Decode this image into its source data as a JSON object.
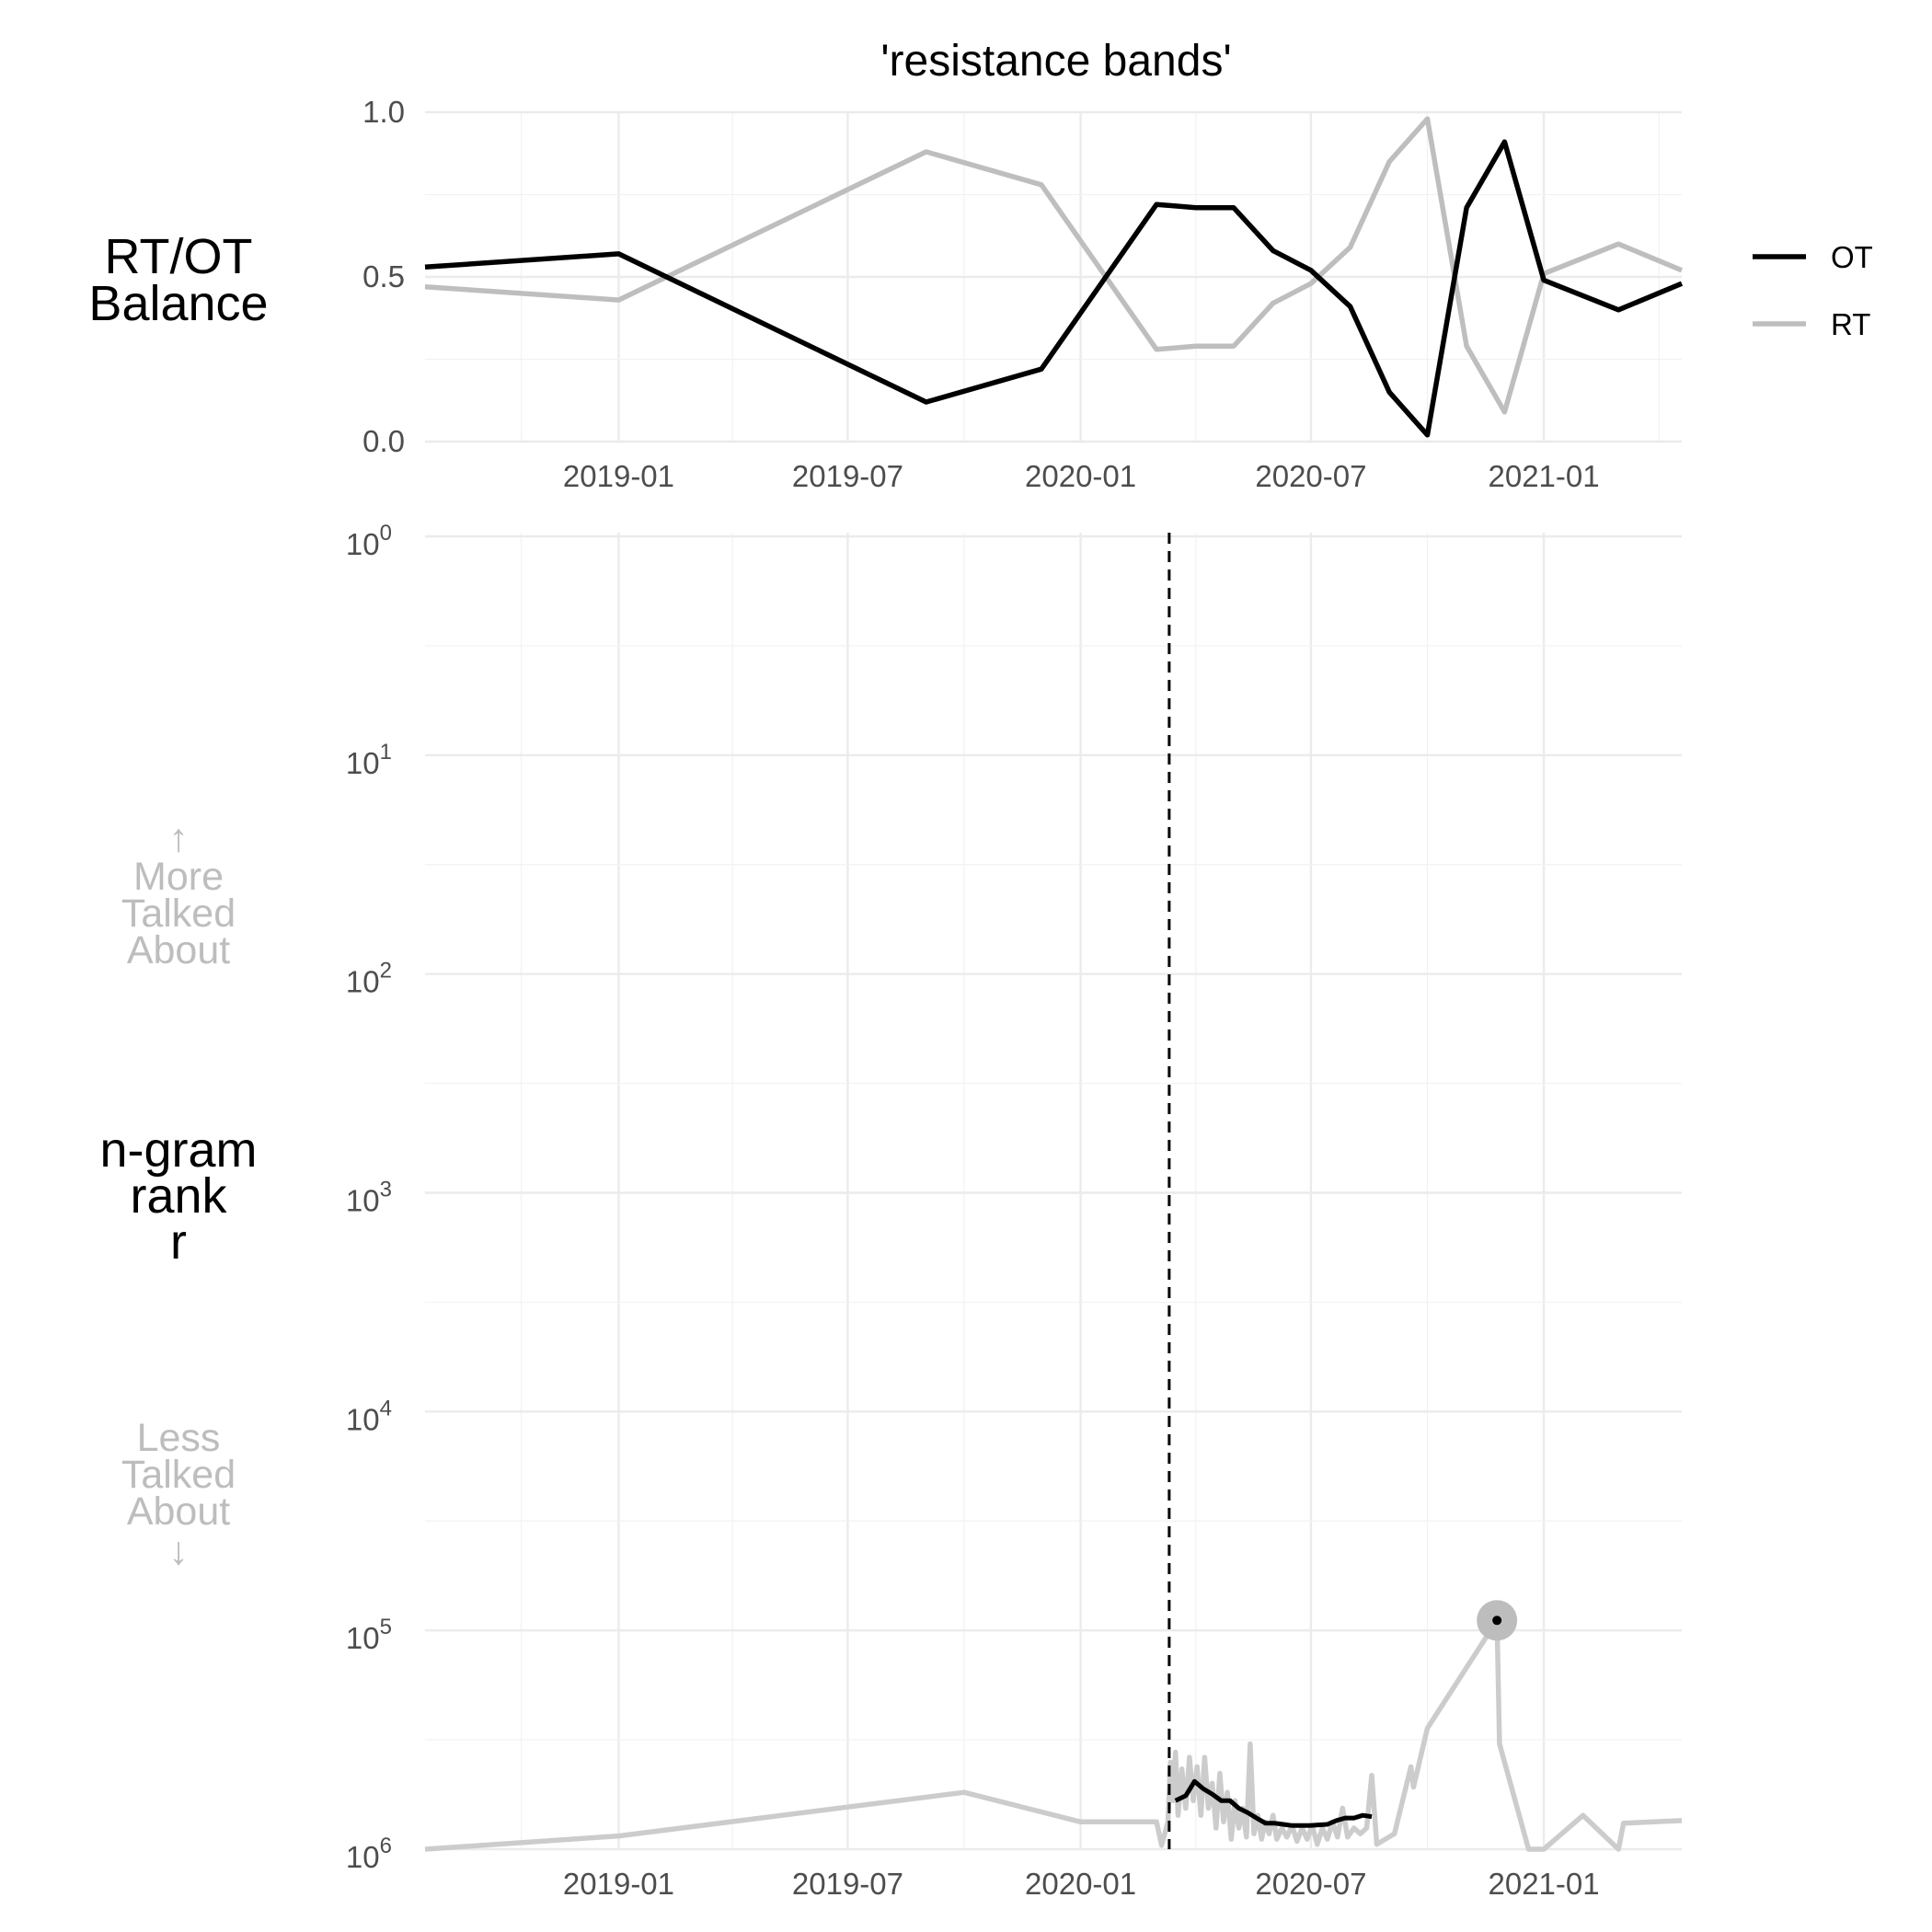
{
  "chart_data": [
    {
      "type": "line",
      "title": "'resistance bands'",
      "ylabel": "RT/OT Balance",
      "ylim": [
        0,
        1
      ],
      "yticks": [
        "0.0",
        "0.5",
        "1.0"
      ],
      "xticks": [
        "2019-01",
        "2019-07",
        "2020-01",
        "2020-07",
        "2021-01"
      ],
      "xlim": [
        "2018-08-01",
        "2021-04-20"
      ],
      "grid": true,
      "legend": {
        "position": "right",
        "entries": [
          "OT",
          "RT"
        ]
      },
      "series": [
        {
          "name": "OT",
          "color": "#000000",
          "points": [
            [
              "2018-08-01",
              0.53
            ],
            [
              "2019-01-01",
              0.57
            ],
            [
              "2019-09-01",
              0.12
            ],
            [
              "2019-12-01",
              0.22
            ],
            [
              "2020-03-01",
              0.72
            ],
            [
              "2020-04-01",
              0.71
            ],
            [
              "2020-05-01",
              0.71
            ],
            [
              "2020-06-01",
              0.58
            ],
            [
              "2020-07-01",
              0.52
            ],
            [
              "2020-08-01",
              0.41
            ],
            [
              "2020-09-01",
              0.15
            ],
            [
              "2020-10-01",
              0.02
            ],
            [
              "2020-11-01",
              0.71
            ],
            [
              "2020-12-01",
              0.91
            ],
            [
              "2021-01-01",
              0.49
            ],
            [
              "2021-03-01",
              0.4
            ],
            [
              "2021-04-20",
              0.48
            ]
          ]
        },
        {
          "name": "RT",
          "color": "#bebebe",
          "points": [
            [
              "2018-08-01",
              0.47
            ],
            [
              "2019-01-01",
              0.43
            ],
            [
              "2019-09-01",
              0.88
            ],
            [
              "2019-12-01",
              0.78
            ],
            [
              "2020-03-01",
              0.28
            ],
            [
              "2020-04-01",
              0.29
            ],
            [
              "2020-05-01",
              0.29
            ],
            [
              "2020-06-01",
              0.42
            ],
            [
              "2020-07-01",
              0.48
            ],
            [
              "2020-08-01",
              0.59
            ],
            [
              "2020-09-01",
              0.85
            ],
            [
              "2020-10-01",
              0.98
            ],
            [
              "2020-11-01",
              0.29
            ],
            [
              "2020-12-01",
              0.09
            ],
            [
              "2021-01-01",
              0.51
            ],
            [
              "2021-03-01",
              0.6
            ],
            [
              "2021-04-20",
              0.52
            ]
          ]
        }
      ]
    },
    {
      "type": "line",
      "ylabel": "n-gram rank r",
      "yscale": "log10",
      "yreversed": true,
      "ylim": [
        1,
        1000000
      ],
      "yticks": [
        {
          "base": "10",
          "exp": "0"
        },
        {
          "base": "10",
          "exp": "1"
        },
        {
          "base": "10",
          "exp": "2"
        },
        {
          "base": "10",
          "exp": "3"
        },
        {
          "base": "10",
          "exp": "4"
        },
        {
          "base": "10",
          "exp": "5"
        },
        {
          "base": "10",
          "exp": "6"
        }
      ],
      "xticks": [
        "2019-01",
        "2019-07",
        "2020-01",
        "2020-07",
        "2021-01"
      ],
      "xlim": [
        "2018-08-01",
        "2021-04-20"
      ],
      "grid": true,
      "annotations": {
        "up_arrow": "↑",
        "more": [
          "More",
          "Talked",
          "About"
        ],
        "less": [
          "Less",
          "Talked",
          "About"
        ],
        "down_arrow": "↓"
      },
      "vline_date": "2020-03-11",
      "highlight": {
        "date": "2020-11-25",
        "rank": 90000
      },
      "series": [
        {
          "name": "RT",
          "color": "#cccccc",
          "points": [
            [
              "2018-08-01",
              1000000
            ],
            [
              "2019-01-01",
              870000
            ],
            [
              "2019-10-01",
              550000
            ],
            [
              "2020-01-01",
              750000
            ],
            [
              "2020-03-01",
              750000
            ],
            [
              "2020-03-05",
              960000
            ],
            [
              "2020-03-10",
              750000
            ],
            [
              "2020-03-12",
              400000
            ],
            [
              "2020-03-14",
              600000
            ],
            [
              "2020-03-16",
              360000
            ],
            [
              "2020-03-18",
              700000
            ],
            [
              "2020-03-21",
              430000
            ],
            [
              "2020-03-24",
              650000
            ],
            [
              "2020-03-27",
              380000
            ],
            [
              "2020-03-30",
              600000
            ],
            [
              "2020-04-02",
              420000
            ],
            [
              "2020-04-05",
              700000
            ],
            [
              "2020-04-08",
              380000
            ],
            [
              "2020-04-11",
              650000
            ],
            [
              "2020-04-14",
              500000
            ],
            [
              "2020-04-17",
              800000
            ],
            [
              "2020-04-20",
              450000
            ],
            [
              "2020-04-23",
              750000
            ],
            [
              "2020-04-26",
              550000
            ],
            [
              "2020-04-29",
              900000
            ],
            [
              "2020-05-02",
              600000
            ],
            [
              "2020-05-05",
              800000
            ],
            [
              "2020-05-08",
              650000
            ],
            [
              "2020-05-11",
              880000
            ],
            [
              "2020-05-14",
              330000
            ],
            [
              "2020-05-17",
              850000
            ],
            [
              "2020-05-20",
              700000
            ],
            [
              "2020-05-23",
              900000
            ],
            [
              "2020-05-26",
              750000
            ],
            [
              "2020-05-29",
              850000
            ],
            [
              "2020-06-01",
              700000
            ],
            [
              "2020-06-04",
              900000
            ],
            [
              "2020-06-08",
              800000
            ],
            [
              "2020-06-12",
              880000
            ],
            [
              "2020-06-16",
              780000
            ],
            [
              "2020-06-20",
              920000
            ],
            [
              "2020-06-24",
              800000
            ],
            [
              "2020-06-28",
              900000
            ],
            [
              "2020-07-02",
              780000
            ],
            [
              "2020-07-06",
              950000
            ],
            [
              "2020-07-10",
              800000
            ],
            [
              "2020-07-14",
              900000
            ],
            [
              "2020-07-18",
              750000
            ],
            [
              "2020-07-22",
              880000
            ],
            [
              "2020-07-26",
              650000
            ],
            [
              "2020-07-30",
              880000
            ],
            [
              "2020-08-04",
              800000
            ],
            [
              "2020-08-09",
              850000
            ],
            [
              "2020-08-14",
              800000
            ],
            [
              "2020-08-18",
              460000
            ],
            [
              "2020-08-22",
              950000
            ],
            [
              "2020-09-05",
              850000
            ],
            [
              "2020-09-18",
              420000
            ],
            [
              "2020-09-20",
              520000
            ],
            [
              "2020-10-01",
              280000
            ],
            [
              "2020-11-25",
              90000
            ],
            [
              "2020-11-27",
              330000
            ],
            [
              "2020-12-20",
              1000000
            ],
            [
              "2021-01-01",
              1000000
            ],
            [
              "2021-02-01",
              700000
            ],
            [
              "2021-03-01",
              1000000
            ],
            [
              "2021-03-05",
              760000
            ],
            [
              "2021-04-20",
              740000
            ]
          ]
        },
        {
          "name": "OT",
          "color": "#000000",
          "points": [
            [
              "2020-03-16",
              600000
            ],
            [
              "2020-03-24",
              570000
            ],
            [
              "2020-03-31",
              490000
            ],
            [
              "2020-04-07",
              530000
            ],
            [
              "2020-04-14",
              560000
            ],
            [
              "2020-04-21",
              600000
            ],
            [
              "2020-04-28",
              600000
            ],
            [
              "2020-05-05",
              650000
            ],
            [
              "2020-05-12",
              680000
            ],
            [
              "2020-05-19",
              720000
            ],
            [
              "2020-05-26",
              760000
            ],
            [
              "2020-06-02",
              760000
            ],
            [
              "2020-06-16",
              780000
            ],
            [
              "2020-06-30",
              780000
            ],
            [
              "2020-07-14",
              770000
            ],
            [
              "2020-07-21",
              740000
            ],
            [
              "2020-07-28",
              720000
            ],
            [
              "2020-08-04",
              720000
            ],
            [
              "2020-08-11",
              700000
            ],
            [
              "2020-08-18",
              710000
            ]
          ]
        }
      ]
    }
  ]
}
